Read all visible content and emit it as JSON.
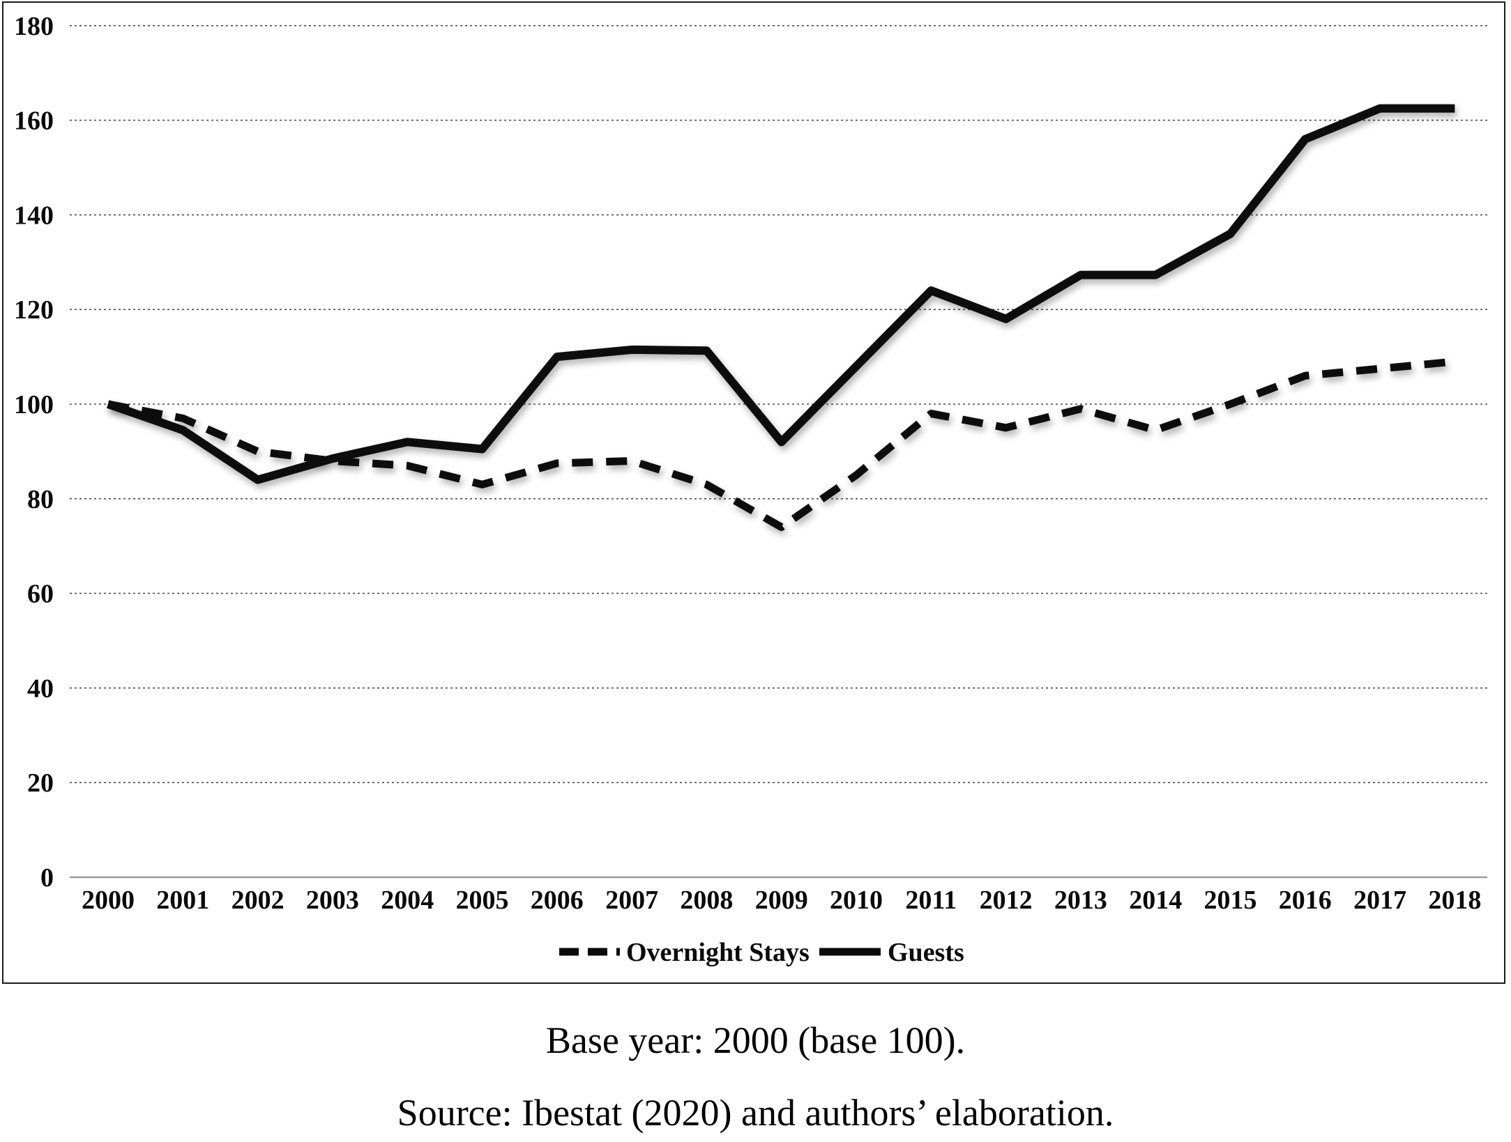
{
  "figure": {
    "captions": {
      "base_year": "Base year: 2000 (base 100).",
      "source": "Source: Ibestat (2020) and authors’ elaboration."
    }
  },
  "chart_data": {
    "type": "line",
    "title": "",
    "xlabel": "",
    "ylabel": "",
    "categories": [
      "2000",
      "2001",
      "2002",
      "2003",
      "2004",
      "2005",
      "2006",
      "2007",
      "2008",
      "2009",
      "2010",
      "2011",
      "2012",
      "2013",
      "2014",
      "2015",
      "2016",
      "2017",
      "2018"
    ],
    "series": [
      {
        "name": "Overnight Stays",
        "style": "dashed",
        "color": "#0a0a0a",
        "values": [
          100,
          97,
          90,
          88,
          87,
          83,
          87.5,
          88,
          83,
          74,
          85,
          98,
          95,
          99,
          94.5,
          100,
          106,
          107.5,
          109
        ]
      },
      {
        "name": "Guests",
        "style": "solid",
        "color": "#0a0a0a",
        "values": [
          100,
          94.5,
          84,
          88.5,
          92,
          90.5,
          110,
          111.5,
          111.3,
          92,
          108,
          124,
          118,
          127.3,
          127.3,
          136,
          156,
          162.5,
          162.5
        ]
      }
    ],
    "ylim": [
      0,
      180
    ],
    "y_ticks": [
      0,
      20,
      40,
      60,
      80,
      100,
      120,
      140,
      160,
      180
    ],
    "grid": "horizontal-dotted",
    "legend_position": "bottom-center"
  }
}
